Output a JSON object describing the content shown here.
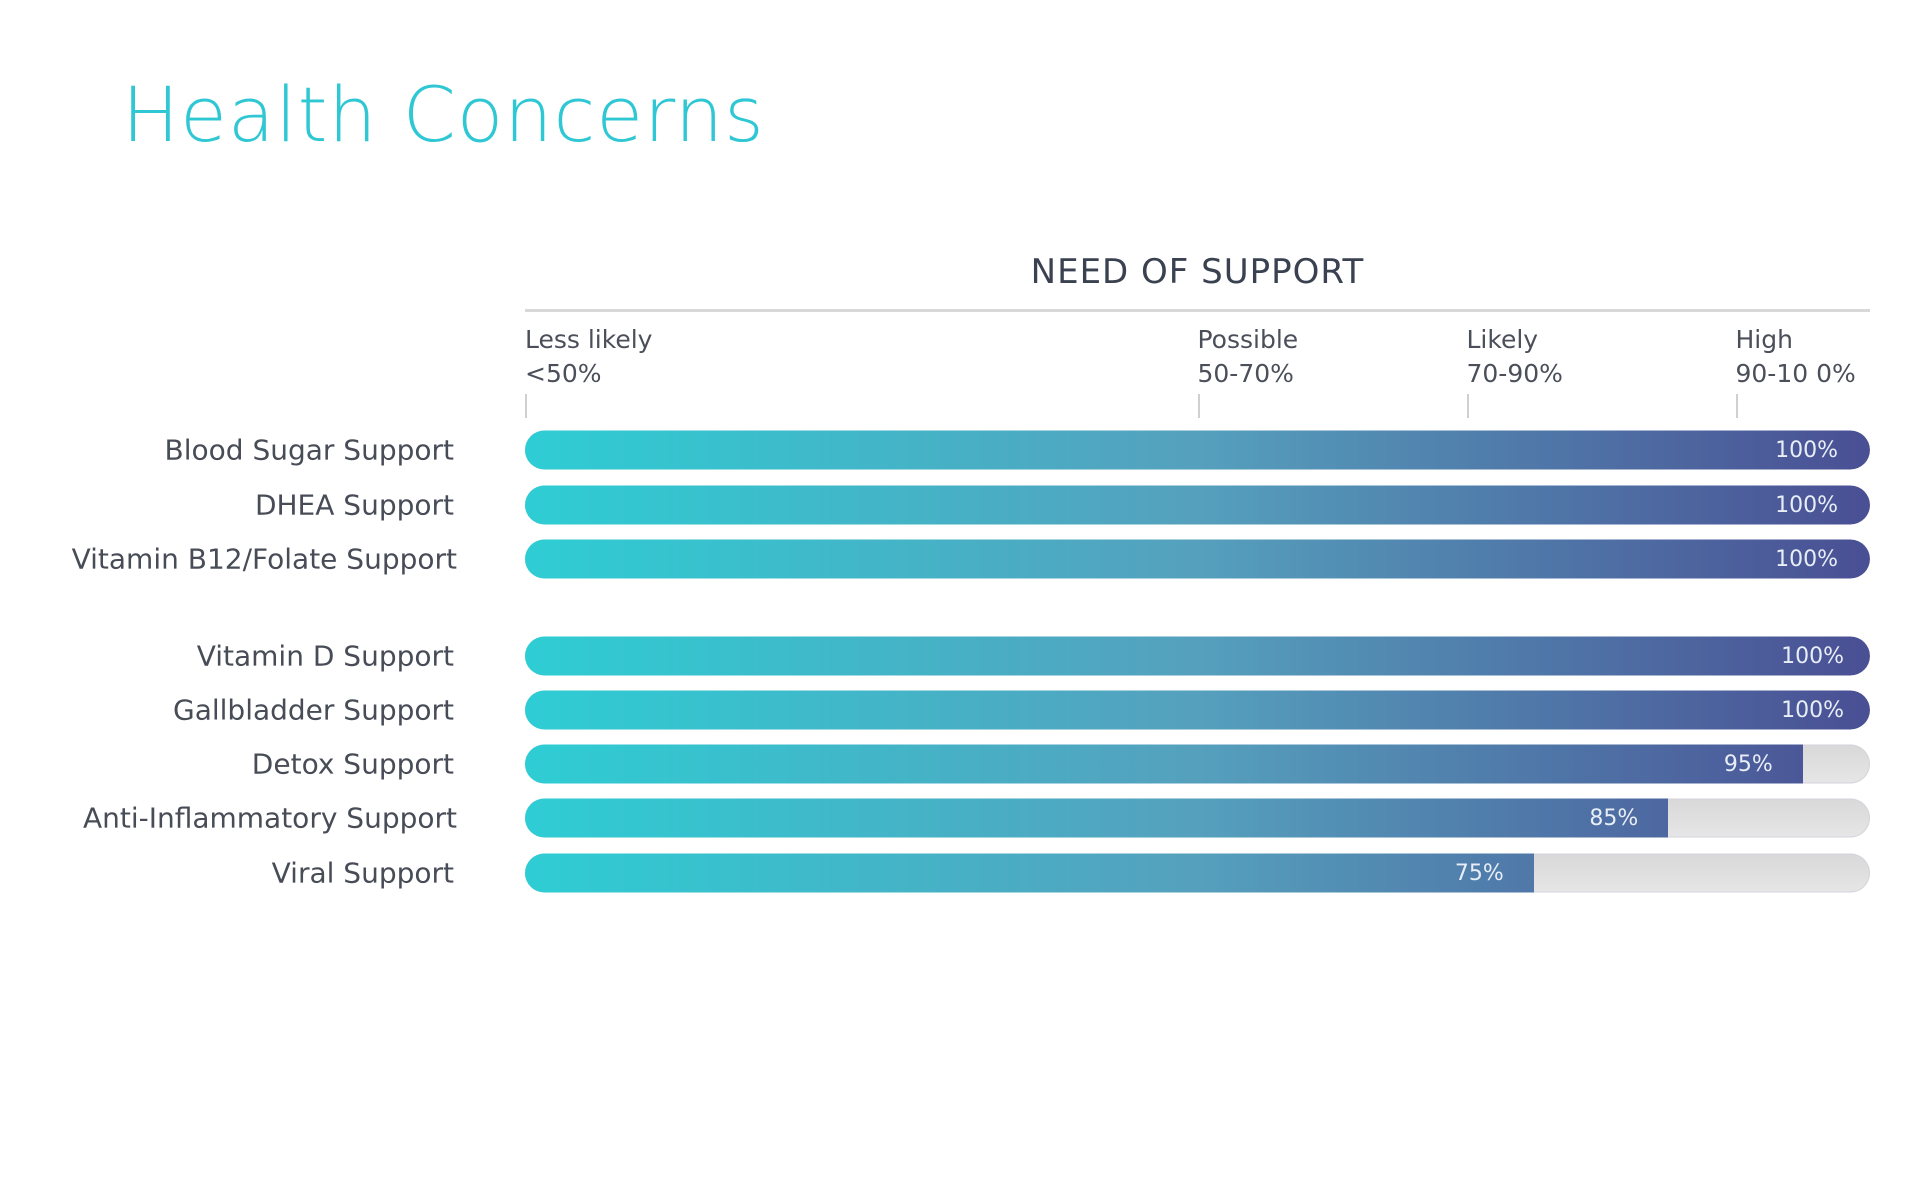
{
  "chart_data": {
    "type": "bar",
    "orientation": "horizontal",
    "title": "Health Concerns",
    "subtitle": "NEED OF SUPPORT",
    "xlim": [
      0,
      100
    ],
    "ticks": [
      {
        "value": 0,
        "label": "Less  likely",
        "range": "<50%"
      },
      {
        "value": 50,
        "label": "Possible",
        "range": "50-70%"
      },
      {
        "value": 70,
        "label": "Likely",
        "range": "70-90%"
      },
      {
        "value": 90,
        "label": "High",
        "range": "90-10 0%"
      }
    ],
    "groups": [
      [
        {
          "category": "Blood Sugar Support",
          "value": 100,
          "label": "100%"
        },
        {
          "category": "DHEA Support",
          "value": 100,
          "label": "100%"
        },
        {
          "category": "Vitamin B12/Folate Support",
          "value": 100,
          "label": "100%"
        }
      ],
      [
        {
          "category": "Vitamin D Support",
          "value": 100,
          "label": "100%"
        },
        {
          "category": "Gallbladder Support",
          "value": 100,
          "label": "100%"
        },
        {
          "category": "Detox Support",
          "value": 95,
          "label": "95%"
        },
        {
          "category": "Anti-Inflammatory Support",
          "value": 85,
          "label": "85%"
        },
        {
          "category": "Viral Support",
          "value": 75,
          "label": "75%"
        }
      ]
    ],
    "colors": {
      "gradient_start": "#2ecdd4",
      "gradient_end": "#4a4f94",
      "track": "#e0e0e0",
      "title": "#2ec7d3"
    },
    "grid": false,
    "legend": "none"
  }
}
